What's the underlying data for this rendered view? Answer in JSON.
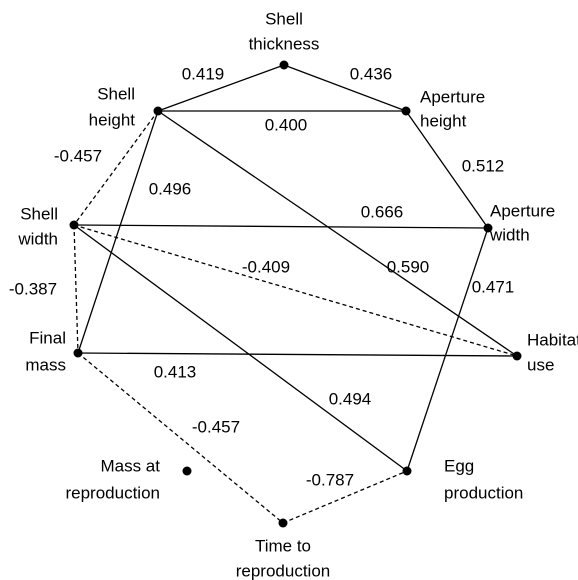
{
  "nodes": [
    {
      "label": [
        "Shell",
        "thickness"
      ]
    },
    {
      "label": [
        "Aperture",
        "height"
      ]
    },
    {
      "label": [
        "Aperture",
        "width"
      ]
    },
    {
      "label": [
        "Habitat",
        "use"
      ]
    },
    {
      "label": [
        "Egg",
        "production"
      ]
    },
    {
      "label": [
        "Time to",
        "reproduction"
      ]
    },
    {
      "label": [
        "Mass at",
        "reproduction"
      ]
    },
    {
      "label": [
        "Final",
        "mass"
      ]
    },
    {
      "label": [
        "Shell",
        "width"
      ]
    },
    {
      "label": [
        "Shell",
        "height"
      ]
    }
  ],
  "edges": [
    {
      "label": "0.419"
    },
    {
      "label": "0.436"
    },
    {
      "label": "0.400"
    },
    {
      "label": "0.512"
    },
    {
      "label": "-0.457"
    },
    {
      "label": "0.496"
    },
    {
      "label": "0.666"
    },
    {
      "label": "-0.409"
    },
    {
      "label": "0.590"
    },
    {
      "label": "0.471"
    },
    {
      "label": "-0.387"
    },
    {
      "label": "0.413"
    },
    {
      "label": "0.494"
    },
    {
      "label": "-0.457"
    },
    {
      "label": "-0.787"
    }
  ]
}
